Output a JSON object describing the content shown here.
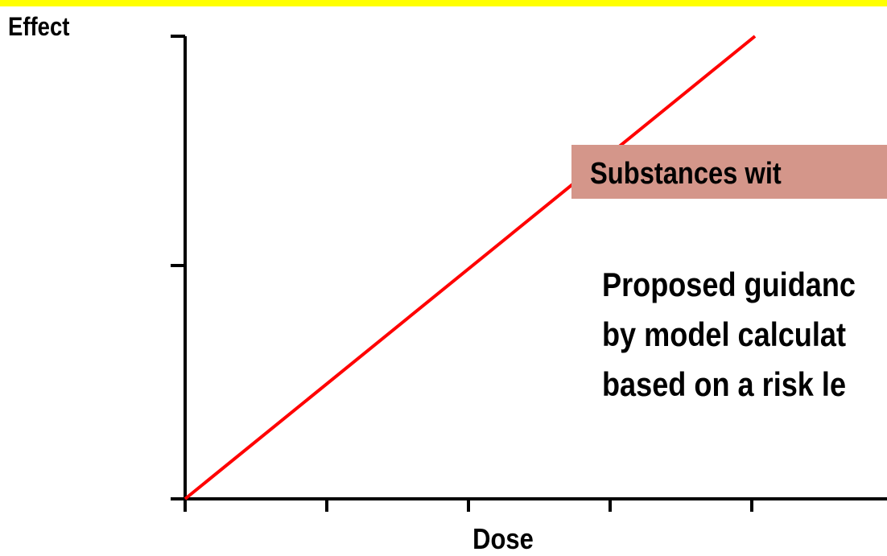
{
  "y_axis_label": "Effect",
  "x_axis_label": "Dose",
  "box_text": "Substances wit",
  "paragraph": [
    "Proposed guidanc",
    "by model calculat",
    "based on a risk le"
  ]
}
